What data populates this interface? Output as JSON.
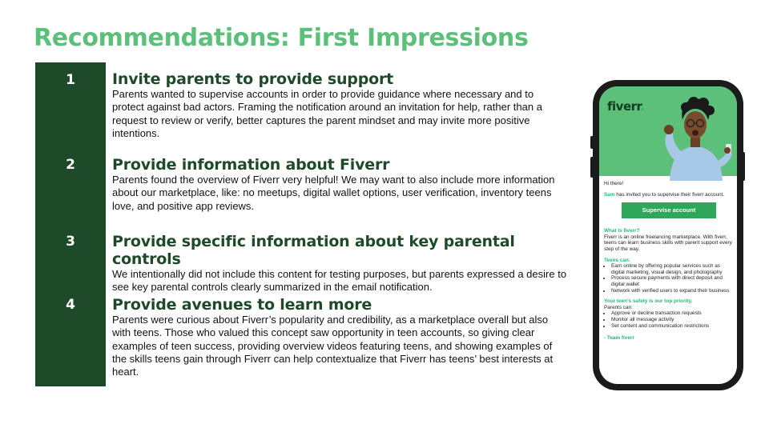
{
  "slide": {
    "title": "Recommendations: First Impressions",
    "recommendations": [
      {
        "number": "1",
        "heading": "Invite parents to provide support",
        "body": "Parents wanted to supervise accounts in order to provide guidance where necessary and to protect against bad actors. Framing the notification around an invitation for help, rather than a request to review or verify, better captures the parent mindset and may invite more positive intentions."
      },
      {
        "number": "2",
        "heading": "Provide information about Fiverr",
        "body": "Parents found the overview of Fiverr very helpful! We may want to also include more information about our marketplace, like: no meetups, digital wallet options, user verification, inventory teens love, and positive app reviews."
      },
      {
        "number": "3",
        "heading": "Provide specific information about key parental controls",
        "body": "We intentionally did not include this content for testing purposes, but parents expressed a desire to see key parental controls clearly summarized in the email notification."
      },
      {
        "number": "4",
        "heading": "Provide avenues to learn more",
        "body": "Parents were curious about Fiverr’s popularity and credibility, as a marketplace overall but also with teens. Those who valued this concept saw opportunity in teen accounts, so giving clear examples of teen success, providing overview videos featuring teens, and showing examples of the skills teens gain through Fiverr can help contextualize that Fiverr has teens’ best interests at heart."
      }
    ]
  },
  "phone": {
    "logo": "fiverr",
    "logo_dot": ".",
    "greeting": "Hi there!",
    "invite_name": "Sam",
    "invite_text": " has invited you to supervise their fiverr account.",
    "cta_label": "Supervise account",
    "what_heading": "What is fiverr?",
    "what_body": "Fiverr is an online freelancing marketplace. With fiverr, teens can learn business skills with parent support every step of the way.",
    "teens_heading": "Teens can:",
    "teens_items": [
      "Earn online by offering popular services such as digital marketing, visual design, and photography",
      "Process secure payments with direct deposit and digital wallet",
      "Network with verified users to expand their business"
    ],
    "safety_heading": "Your teen’s safety is our top priority.",
    "parents_intro": "Parents can:",
    "parents_items": [
      "Approve or decline transaction requests",
      "Monitor all message activity",
      "Set content and communication restrictions"
    ],
    "signoff": "- Team fiverr"
  },
  "colors": {
    "title_green": "#5cbf7a",
    "dark_green": "#1e4a2a",
    "brand_green": "#1dbf73",
    "button_green": "#2ea75a"
  }
}
